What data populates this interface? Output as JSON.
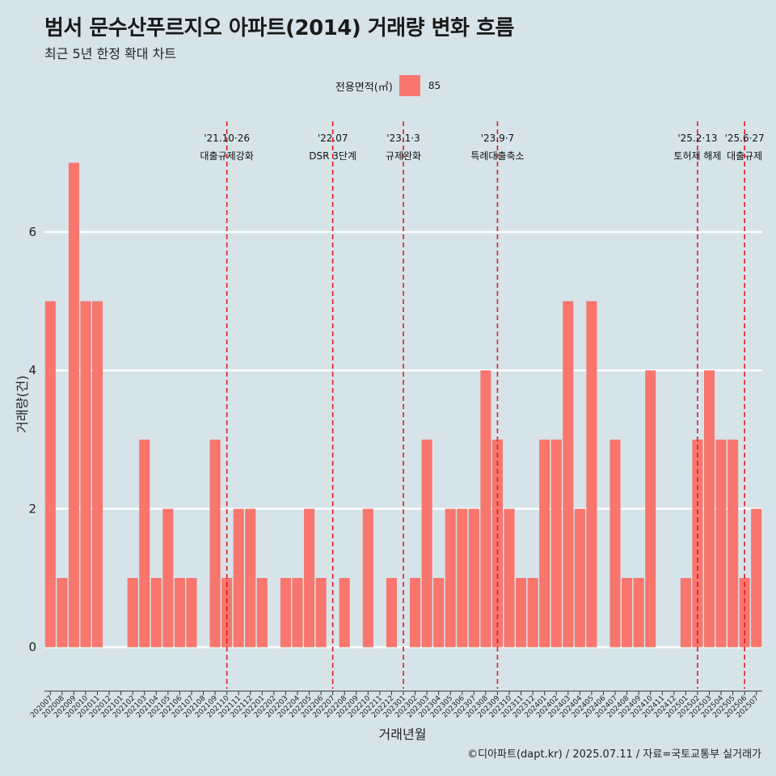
{
  "header": {
    "title": "범서 문수산푸르지오 아파트(2014) 거래량 변화 흐름",
    "subtitle": "최근 5년 한정 확대 차트"
  },
  "legend": {
    "title": "전용면적(㎡)",
    "items": [
      {
        "label": "85",
        "color": "#f8766d"
      }
    ]
  },
  "caption": "©디아파트(dapt.kr) / 2025.07.11 / 자료=국토교통부 실거래가",
  "chart_data": {
    "type": "bar",
    "title": "범서 문수산푸르지오 아파트(2014) 거래량 변화 흐름",
    "subtitle": "최근 5년 한정 확대 차트",
    "xlabel": "거래년월",
    "ylabel": "거래량(건)",
    "ylim": [
      -0.6,
      7.6
    ],
    "yticks": [
      0,
      2,
      4,
      6
    ],
    "grid": "horizontal",
    "legend_position": "top",
    "bar_color": "#f8766d",
    "categories": [
      "202007",
      "202008",
      "202009",
      "202010",
      "202011",
      "202012",
      "202101",
      "202102",
      "202103",
      "202104",
      "202105",
      "202106",
      "202107",
      "202108",
      "202109",
      "202110",
      "202111",
      "202112",
      "202201",
      "202202",
      "202203",
      "202204",
      "202205",
      "202206",
      "202207",
      "202208",
      "202209",
      "202210",
      "202211",
      "202212",
      "202301",
      "202302",
      "202303",
      "202304",
      "202305",
      "202306",
      "202307",
      "202308",
      "202309",
      "202310",
      "202311",
      "202312",
      "202401",
      "202402",
      "202403",
      "202404",
      "202405",
      "202406",
      "202407",
      "202408",
      "202409",
      "202410",
      "202411",
      "202412",
      "202501",
      "202502",
      "202503",
      "202504",
      "202505",
      "202506",
      "202507"
    ],
    "series": [
      {
        "name": "85",
        "values": [
          5,
          1,
          7,
          5,
          5,
          0,
          0,
          1,
          3,
          1,
          2,
          1,
          1,
          0,
          3,
          1,
          2,
          2,
          1,
          0,
          1,
          1,
          2,
          1,
          0,
          1,
          0,
          2,
          0,
          1,
          0,
          1,
          3,
          1,
          2,
          2,
          2,
          4,
          3,
          2,
          1,
          1,
          3,
          3,
          5,
          2,
          5,
          0,
          3,
          1,
          1,
          4,
          0,
          0,
          1,
          3,
          4,
          3,
          3,
          1,
          2
        ]
      }
    ],
    "events": [
      {
        "x": "202110",
        "date": "'21.10·26",
        "label": "대출규제강화"
      },
      {
        "x": "202207",
        "date": "'22.07",
        "label": "DSR 3단계"
      },
      {
        "x": "202301",
        "date": "'23.1·3",
        "label": "규제완화"
      },
      {
        "x": "202309",
        "date": "'23.9·7",
        "label": "특례대출축소"
      },
      {
        "x": "202502",
        "date": "'25.2·13",
        "label": "토허제 해제"
      },
      {
        "x": "202506",
        "date": "'25.6·27",
        "label": "대출규제"
      }
    ]
  }
}
